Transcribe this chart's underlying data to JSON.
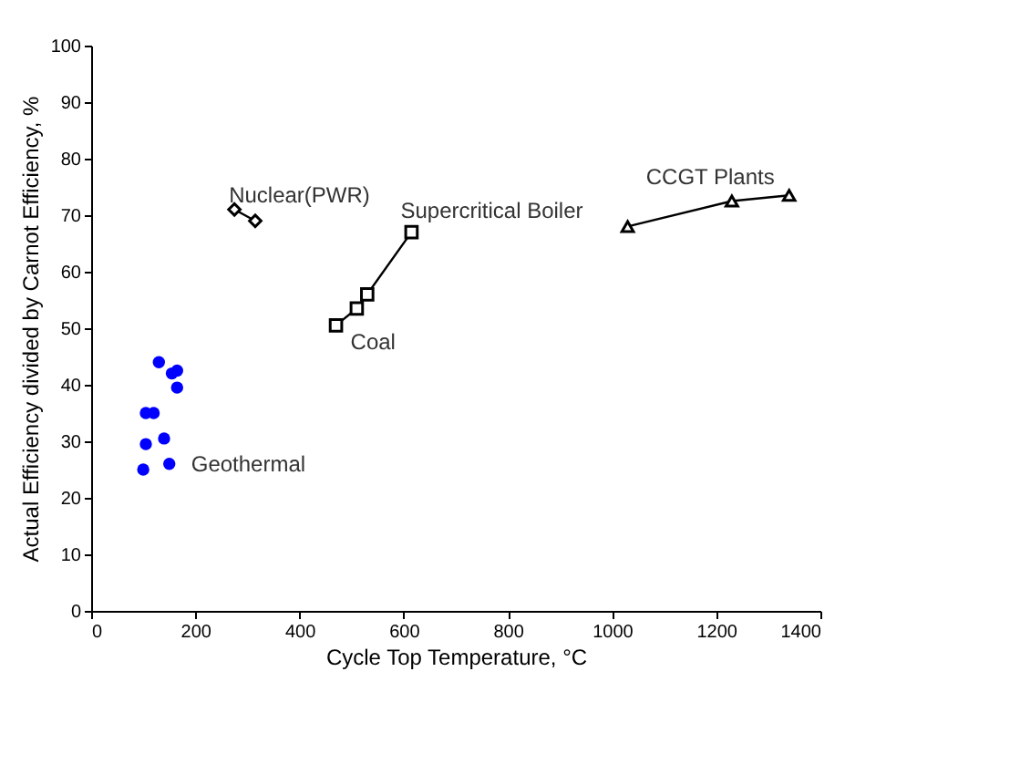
{
  "chart_data": {
    "type": "line",
    "xlabel": "Cycle Top Temperature, °C",
    "ylabel": "Actual Efficiency divided by Carnot Efficiency, %",
    "xlim": [
      0,
      1400
    ],
    "xticks": [
      0,
      200,
      400,
      600,
      800,
      1000,
      1200,
      1400
    ],
    "ylim": [
      0,
      100
    ],
    "yticks": [
      0,
      10,
      20,
      30,
      40,
      50,
      60,
      70,
      80,
      90,
      100
    ],
    "grid": false,
    "legend": false,
    "line_style": "solid",
    "series": [
      {
        "name": "Geothermal",
        "type": "scatter",
        "marker": "circle",
        "color": "#0000ff",
        "x": [
          100,
          105,
          105,
          120,
          130,
          140,
          150,
          155,
          165,
          165
        ],
        "values": [
          25,
          29.5,
          35,
          35,
          44,
          30.5,
          26,
          42,
          42.5,
          39.5
        ]
      },
      {
        "name": "Nuclear(PWR)",
        "marker": "diamond",
        "color": "#000000",
        "x": [
          275,
          315
        ],
        "values": [
          71,
          69
        ]
      },
      {
        "name": "Coal",
        "marker": "square",
        "color": "#000000",
        "x": [
          470,
          510,
          530,
          615
        ],
        "values": [
          50.5,
          53.5,
          56,
          67
        ]
      },
      {
        "name": "CCGT Plants",
        "marker": "triangle",
        "color": "#000000",
        "x": [
          1030,
          1230,
          1340
        ],
        "values": [
          68,
          72.5,
          73.5
        ]
      }
    ],
    "annotations": [
      {
        "text": "Supercritical Boiler",
        "x": 615,
        "y": 67
      }
    ]
  }
}
